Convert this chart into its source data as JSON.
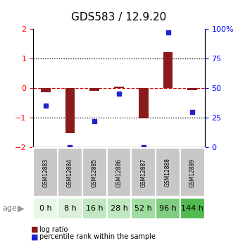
{
  "title": "GDS583 / 12.9.20",
  "samples": [
    "GSM12883",
    "GSM12884",
    "GSM12885",
    "GSM12886",
    "GSM12887",
    "GSM12888",
    "GSM12889"
  ],
  "ages": [
    "0 h",
    "8 h",
    "16 h",
    "28 h",
    "52 h",
    "96 h",
    "144 h"
  ],
  "log_ratios": [
    -0.15,
    -1.52,
    -0.1,
    0.05,
    -1.02,
    1.22,
    -0.06
  ],
  "percentile_ranks": [
    35,
    0,
    22,
    45,
    0,
    97,
    30
  ],
  "bar_color": "#8B1A1A",
  "dot_color": "#2222CC",
  "ylim": [
    -2,
    2
  ],
  "yticks": [
    -2,
    -1,
    0,
    1,
    2
  ],
  "age_colors": [
    "#e8f8e8",
    "#daf0da",
    "#c0e8c0",
    "#c0e8c0",
    "#a0dca0",
    "#80cc80",
    "#50bb50"
  ],
  "gsm_bg_color": "#c8c8c8",
  "legend_log_ratio": "log ratio",
  "legend_percentile": "percentile rank within the sample",
  "title_fontsize": 11,
  "tick_fontsize": 8,
  "gsm_fontsize": 5.5,
  "age_fontsize": 8
}
